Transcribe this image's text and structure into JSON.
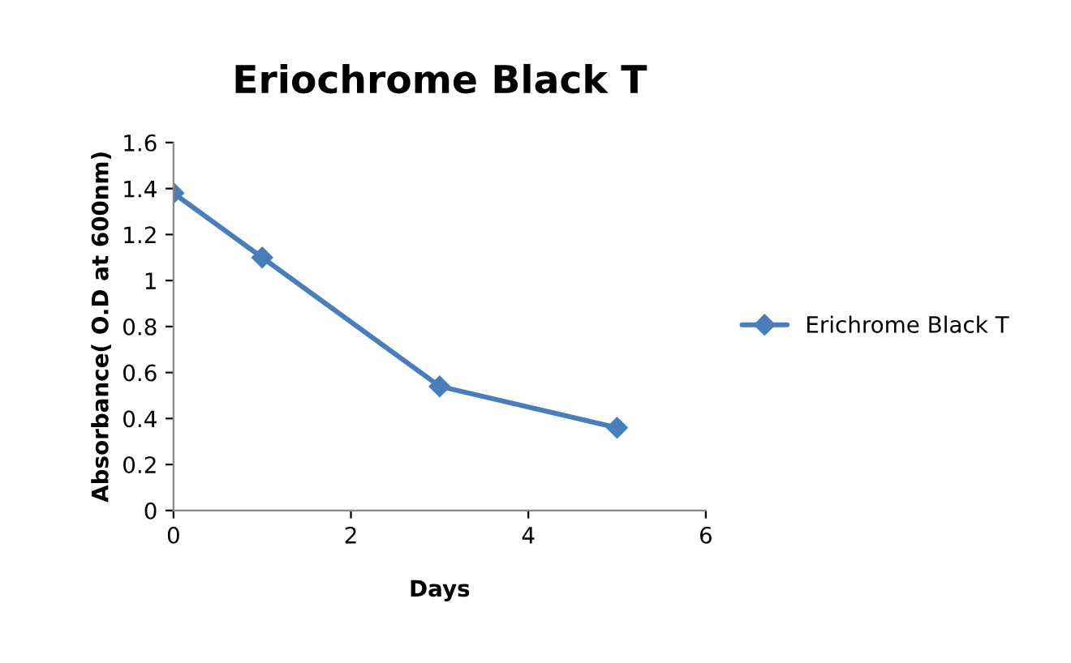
{
  "chart_data": {
    "type": "line",
    "title": "Eriochrome Black T",
    "xlabel": "Days",
    "ylabel": "Absorbance( O.D at 600nm)",
    "x": [
      0,
      1,
      3,
      5
    ],
    "series": [
      {
        "name": "Erichrome Black T",
        "color": "#4a7ebb",
        "values": [
          1.38,
          1.1,
          0.54,
          0.36
        ]
      }
    ],
    "xlim": [
      0,
      6
    ],
    "xticks": [
      0,
      2,
      4,
      6
    ],
    "ylim": [
      0,
      1.6
    ],
    "yticks": [
      0,
      {
        "value": 0.2,
        "label": "0.2"
      },
      {
        "value": 0.4,
        "label": "0.4"
      },
      {
        "value": 0.6,
        "label": "0.6"
      },
      {
        "value": 0.8,
        "label": "0.8"
      },
      1,
      {
        "value": 1.2,
        "label": "1.2"
      },
      {
        "value": 1.4,
        "label": "1.4"
      },
      {
        "value": 1.6,
        "label": "1.6"
      }
    ],
    "grid": false,
    "legend": "right",
    "marker": "diamond",
    "line_style": "solid"
  }
}
